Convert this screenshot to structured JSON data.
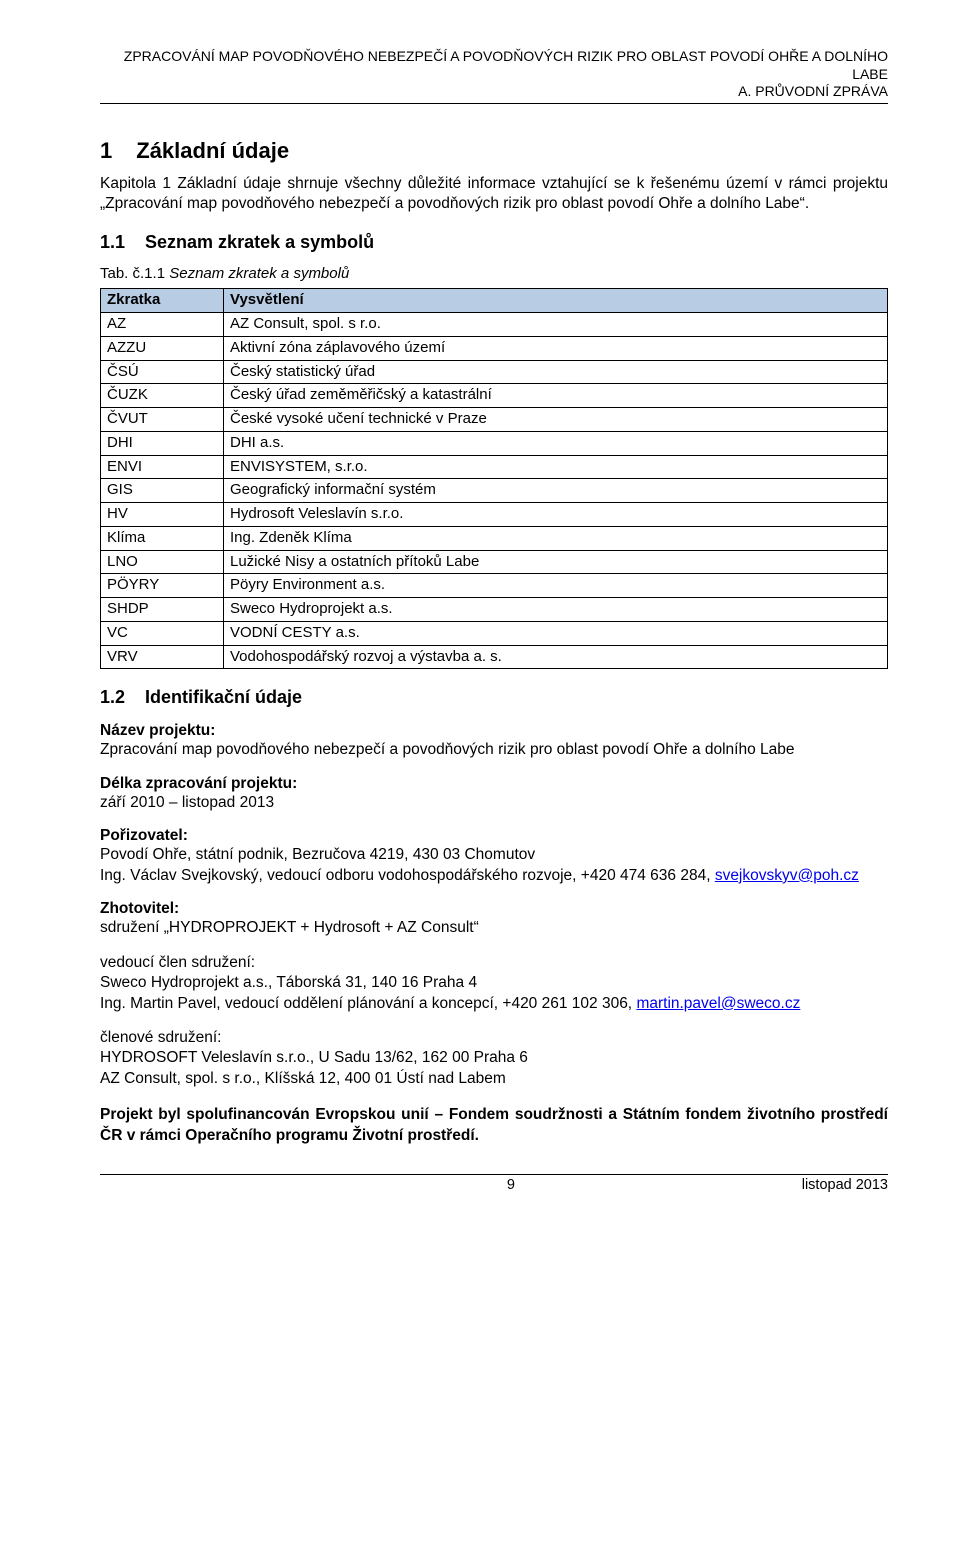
{
  "header": {
    "line1": "ZPRACOVÁNÍ MAP POVODŇOVÉHO NEBEZPEČÍ A POVODŇOVÝCH RIZIK PRO OBLAST POVODÍ OHŘE A DOLNÍHO LABE",
    "line2": "A. PRŮVODNÍ ZPRÁVA"
  },
  "s1": {
    "num": "1",
    "title": "Základní údaje",
    "intro": "Kapitola 1 Základní údaje shrnuje všechny důležité informace vztahující se k řešenému území v rámci projektu „Zpracování map povodňového nebezpečí a povodňových rizik pro oblast povodí Ohře a dolního Labe“."
  },
  "s11": {
    "num": "1.1",
    "title": "Seznam zkratek a symbolů",
    "caption_prefix": "Tab. č.1.1 ",
    "caption_title": "Seznam zkratek a symbolů",
    "table": {
      "header_bg": "#b8cce4",
      "columns": [
        "Zkratka",
        "Vysvětlení"
      ],
      "rows": [
        [
          "AZ",
          "AZ Consult, spol. s r.o."
        ],
        [
          "AZZU",
          "Aktivní zóna záplavového území"
        ],
        [
          "ČSÚ",
          "Český statistický úřad"
        ],
        [
          "ČUZK",
          "Český úřad zeměměřičský a katastrální"
        ],
        [
          "ČVUT",
          "České vysoké učení technické v Praze"
        ],
        [
          "DHI",
          "DHI a.s."
        ],
        [
          "ENVI",
          "ENVISYSTEM, s.r.o."
        ],
        [
          "GIS",
          "Geografický informační systém"
        ],
        [
          "HV",
          "Hydrosoft Veleslavín s.r.o."
        ],
        [
          "Klíma",
          "Ing. Zdeněk Klíma"
        ],
        [
          "LNO",
          "Lužické Nisy a ostatních přítoků Labe"
        ],
        [
          "PÖYRY",
          "Pöyry Environment a.s."
        ],
        [
          "SHDP",
          "Sweco Hydroprojekt a.s."
        ],
        [
          "VC",
          "VODNÍ CESTY a.s."
        ],
        [
          "VRV",
          "Vodohospodářský rozvoj a výstavba a. s."
        ]
      ]
    }
  },
  "s12": {
    "num": "1.2",
    "title": "Identifikační údaje",
    "nazev_label": "Název projektu:",
    "nazev_body": "Zpracování map povodňového nebezpečí a povodňových rizik pro oblast povodí Ohře a dolního Labe",
    "delka_label": "Délka zpracování projektu:",
    "delka_body": "září 2010 – listopad 2013",
    "poriz_label": "Pořizovatel:",
    "poriz_line1": "Povodí Ohře, státní podnik, Bezručova 4219, 430 03 Chomutov",
    "poriz_line2a": "Ing. Václav Svejkovský, vedoucí odboru vodohospodářského rozvoje, +420 474 636 284, ",
    "poriz_email": "svejkovskyv@poh.cz",
    "zhot_label": "Zhotovitel:",
    "zhot_body": "sdružení „HYDROPROJEKT + Hydrosoft + AZ Consult“",
    "ved_label": "vedoucí člen sdružení:",
    "ved_line1": "Sweco Hydroprojekt a.s., Táborská 31, 140 16 Praha 4",
    "ved_line2a": "Ing. Martin Pavel, vedoucí oddělení plánování a koncepcí, +420 261 102 306, ",
    "ved_email": "martin.pavel@sweco.cz",
    "clen_label": "členové sdružení:",
    "clen_line1": "HYDROSOFT Veleslavín s.r.o., U Sadu 13/62, 162 00 Praha 6",
    "clen_line2": "AZ Consult, spol. s r.o., Klíšská 12, 400 01 Ústí nad Labem",
    "closing": "Projekt byl spolufinancován Evropskou unií – Fondem soudržnosti a Státním fondem životního prostředí ČR v rámci Operačního programu Životní prostředí."
  },
  "footer": {
    "page": "9",
    "date": "listopad 2013"
  }
}
